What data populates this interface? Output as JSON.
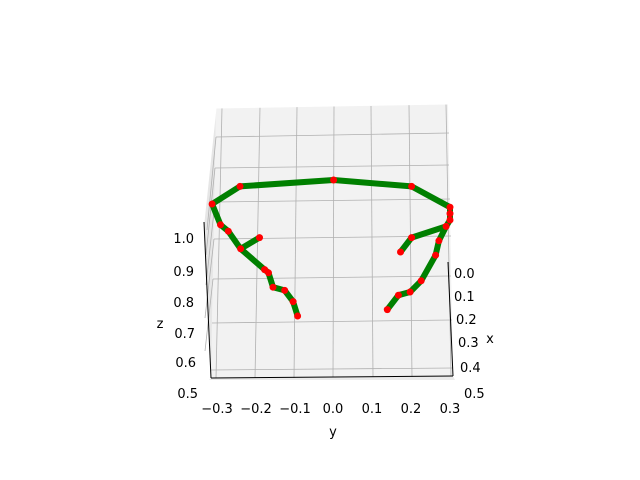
{
  "chart_data": {
    "type": "line",
    "projection": "3d",
    "title": "",
    "xlabel": "x",
    "ylabel": "y",
    "zlabel": "z",
    "x_ticks": [
      "0.0",
      "0.1",
      "0.2",
      "0.3",
      "0.4",
      "0.5"
    ],
    "y_ticks": [
      "−0.3",
      "−0.2",
      "−0.1",
      "0.0",
      "0.1",
      "0.2",
      "0.3"
    ],
    "z_ticks": [
      "0.5",
      "0.6",
      "0.7",
      "0.8",
      "0.9",
      "1.0"
    ],
    "xlim": [
      0.0,
      0.5
    ],
    "ylim": [
      -0.3,
      0.3
    ],
    "zlim": [
      0.5,
      1.0
    ],
    "grid": true,
    "legend": "none",
    "line_color": "#008000",
    "marker_color": "#ff0000",
    "points": [
      {
        "x": 0.05,
        "y": -0.24,
        "z": 1.08
      },
      {
        "x": 0.05,
        "y": 0.0,
        "z": 1.1
      },
      {
        "x": 0.05,
        "y": 0.2,
        "z": 1.08
      },
      {
        "x": 0.0,
        "y": 0.3,
        "z": 0.99
      },
      {
        "x": 0.0,
        "y": 0.3,
        "z": 0.97
      },
      {
        "x": 0.0,
        "y": 0.3,
        "z": 0.95
      },
      {
        "x": 0.0,
        "y": 0.29,
        "z": 0.93
      },
      {
        "x": 0.05,
        "y": 0.2,
        "z": 0.92
      },
      {
        "x": 0.1,
        "y": 0.17,
        "z": 0.9
      },
      {
        "x": 0.05,
        "y": 0.27,
        "z": 0.91
      },
      {
        "x": 0.1,
        "y": 0.26,
        "z": 0.89
      },
      {
        "x": 0.2,
        "y": 0.22,
        "z": 0.86
      },
      {
        "x": 0.25,
        "y": 0.19,
        "z": 0.85
      },
      {
        "x": 0.25,
        "y": 0.16,
        "z": 0.84
      },
      {
        "x": 0.3,
        "y": 0.13,
        "z": 0.82
      },
      {
        "x": 0.0,
        "y": -0.31,
        "z": 1.0
      },
      {
        "x": 0.05,
        "y": -0.29,
        "z": 0.96
      },
      {
        "x": 0.05,
        "y": -0.27,
        "z": 0.94
      },
      {
        "x": 0.1,
        "y": -0.24,
        "z": 0.91
      },
      {
        "x": 0.05,
        "y": -0.19,
        "z": 0.92
      },
      {
        "x": 0.15,
        "y": -0.18,
        "z": 0.87
      },
      {
        "x": 0.15,
        "y": -0.17,
        "z": 0.86
      },
      {
        "x": 0.2,
        "y": -0.16,
        "z": 0.84
      },
      {
        "x": 0.2,
        "y": -0.13,
        "z": 0.83
      },
      {
        "x": 0.25,
        "y": -0.11,
        "z": 0.82
      },
      {
        "x": 0.3,
        "y": -0.1,
        "z": 0.8
      }
    ],
    "segments": [
      [
        0,
        1
      ],
      [
        1,
        2
      ],
      [
        2,
        3
      ],
      [
        3,
        4
      ],
      [
        4,
        5
      ],
      [
        5,
        6
      ],
      [
        6,
        7
      ],
      [
        7,
        8
      ],
      [
        6,
        9
      ],
      [
        9,
        10
      ],
      [
        10,
        11
      ],
      [
        11,
        12
      ],
      [
        12,
        13
      ],
      [
        13,
        14
      ],
      [
        0,
        15
      ],
      [
        15,
        16
      ],
      [
        16,
        17
      ],
      [
        17,
        18
      ],
      [
        18,
        19
      ],
      [
        18,
        20
      ],
      [
        20,
        21
      ],
      [
        21,
        22
      ],
      [
        22,
        23
      ],
      [
        23,
        24
      ],
      [
        24,
        25
      ]
    ]
  }
}
